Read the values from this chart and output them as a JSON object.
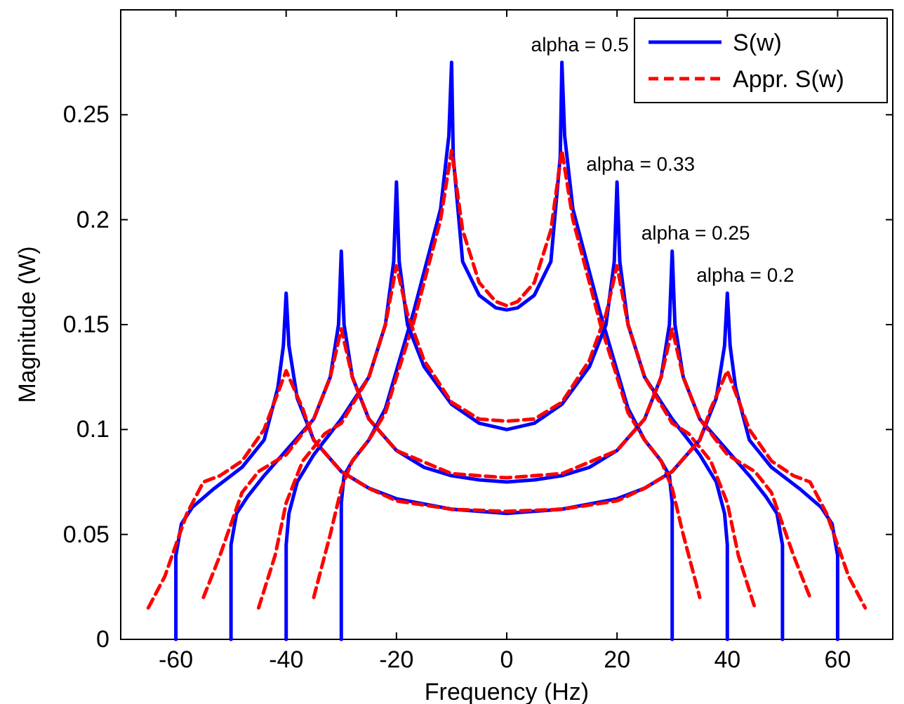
{
  "chart_data": {
    "type": "line",
    "xlabel": "Frequency (Hz)",
    "ylabel": "Magnitude (W)",
    "xlim": [
      -70,
      70
    ],
    "ylim": [
      0,
      0.3
    ],
    "xticks": [
      -60,
      -40,
      -20,
      0,
      20,
      40,
      60
    ],
    "yticks": [
      0,
      0.05,
      0.1,
      0.15,
      0.2,
      0.25
    ],
    "grid": false,
    "legend": "top right",
    "annotations": [
      {
        "text": "alpha = 0.5",
        "x": 10,
        "y": 0.275
      },
      {
        "text": "alpha = 0.33",
        "x": 20,
        "y": 0.218
      },
      {
        "text": "alpha = 0.25",
        "x": 30,
        "y": 0.185
      },
      {
        "text": "alpha = 0.2",
        "x": 40,
        "y": 0.165
      }
    ],
    "series": [
      {
        "name": "S(w)",
        "color": "#0000ff",
        "line_style": "solid",
        "x": [
          -30,
          -30,
          -29.5,
          -28,
          -25,
          -22,
          -20,
          -17,
          -15,
          -12,
          -10.5,
          -10,
          -9.7,
          -8,
          -5,
          -2,
          0,
          2,
          5,
          8,
          9.7,
          10,
          10.5,
          12,
          15,
          17,
          20,
          22,
          25,
          28,
          29.5,
          30,
          30
        ],
        "values": [
          0,
          0.065,
          0.078,
          0.085,
          0.095,
          0.11,
          0.128,
          0.155,
          0.175,
          0.205,
          0.24,
          0.275,
          0.23,
          0.18,
          0.164,
          0.158,
          0.157,
          0.158,
          0.164,
          0.18,
          0.23,
          0.275,
          0.24,
          0.205,
          0.175,
          0.155,
          0.128,
          0.11,
          0.095,
          0.085,
          0.078,
          0.065,
          0
        ]
      },
      {
        "name": "Appr. S(w)",
        "color": "#ff0000",
        "line_style": "dashed",
        "x": [
          -35,
          -32,
          -30,
          -28,
          -25,
          -22,
          -20,
          -17,
          -15,
          -12,
          -10,
          -8,
          -5,
          -2,
          0,
          2,
          5,
          8,
          10,
          12,
          15,
          17,
          20,
          22,
          25,
          28,
          30,
          32,
          35
        ],
        "values": [
          0.02,
          0.05,
          0.072,
          0.085,
          0.095,
          0.108,
          0.125,
          0.15,
          0.17,
          0.2,
          0.233,
          0.195,
          0.17,
          0.161,
          0.159,
          0.161,
          0.17,
          0.195,
          0.233,
          0.2,
          0.17,
          0.15,
          0.125,
          0.108,
          0.095,
          0.085,
          0.072,
          0.05,
          0.02
        ]
      },
      {
        "color": "#0000ff",
        "line_style": "solid",
        "x": [
          -40,
          -40,
          -39.5,
          -38,
          -35,
          -30,
          -25,
          -22,
          -20.5,
          -20,
          -19.5,
          -18,
          -15,
          -10,
          -5,
          0,
          5,
          10,
          15,
          18,
          19.5,
          20,
          20.5,
          22,
          25,
          30,
          35,
          38,
          39.5,
          40,
          40
        ],
        "values": [
          0,
          0.045,
          0.06,
          0.075,
          0.088,
          0.105,
          0.125,
          0.15,
          0.18,
          0.218,
          0.18,
          0.15,
          0.13,
          0.112,
          0.103,
          0.1,
          0.103,
          0.112,
          0.13,
          0.15,
          0.18,
          0.218,
          0.18,
          0.15,
          0.125,
          0.105,
          0.088,
          0.075,
          0.06,
          0.045,
          0
        ]
      },
      {
        "color": "#ff0000",
        "line_style": "dashed",
        "x": [
          -45,
          -42,
          -40,
          -37,
          -33,
          -30,
          -25,
          -22,
          -20,
          -18,
          -15,
          -10,
          -5,
          0,
          5,
          10,
          15,
          18,
          20,
          22,
          25,
          30,
          33,
          37,
          40,
          42,
          45
        ],
        "values": [
          0.015,
          0.04,
          0.065,
          0.085,
          0.098,
          0.103,
          0.125,
          0.15,
          0.178,
          0.155,
          0.133,
          0.113,
          0.105,
          0.104,
          0.105,
          0.113,
          0.133,
          0.155,
          0.178,
          0.15,
          0.125,
          0.103,
          0.098,
          0.085,
          0.065,
          0.04,
          0.015
        ]
      },
      {
        "color": "#0000ff",
        "line_style": "solid",
        "x": [
          -50,
          -50,
          -49,
          -47,
          -44,
          -40,
          -35,
          -32,
          -30.5,
          -30,
          -29.5,
          -28,
          -25,
          -20,
          -15,
          -10,
          -5,
          0,
          5,
          10,
          15,
          20,
          25,
          28,
          29.5,
          30,
          30.5,
          32,
          35,
          40,
          44,
          47,
          49,
          50,
          50
        ],
        "values": [
          0,
          0.045,
          0.06,
          0.068,
          0.078,
          0.09,
          0.105,
          0.125,
          0.15,
          0.185,
          0.15,
          0.125,
          0.105,
          0.09,
          0.082,
          0.078,
          0.076,
          0.075,
          0.076,
          0.078,
          0.082,
          0.09,
          0.105,
          0.125,
          0.15,
          0.185,
          0.15,
          0.125,
          0.105,
          0.09,
          0.078,
          0.068,
          0.06,
          0.045,
          0
        ]
      },
      {
        "color": "#ff0000",
        "line_style": "dashed",
        "x": [
          -55,
          -52,
          -50,
          -48,
          -45,
          -40,
          -35,
          -32,
          -30,
          -28,
          -25,
          -20,
          -10,
          0,
          10,
          20,
          25,
          28,
          30,
          32,
          35,
          40,
          45,
          48,
          50,
          52,
          55
        ],
        "values": [
          0.02,
          0.04,
          0.055,
          0.07,
          0.08,
          0.088,
          0.105,
          0.125,
          0.148,
          0.125,
          0.105,
          0.09,
          0.079,
          0.077,
          0.079,
          0.09,
          0.105,
          0.125,
          0.148,
          0.125,
          0.105,
          0.088,
          0.08,
          0.07,
          0.055,
          0.04,
          0.02
        ]
      },
      {
        "color": "#0000ff",
        "line_style": "solid",
        "x": [
          -60,
          -60,
          -59,
          -57,
          -53,
          -48,
          -44,
          -41.5,
          -40.5,
          -40,
          -39.5,
          -38,
          -35,
          -30,
          -25,
          -20,
          -10,
          0,
          10,
          20,
          25,
          30,
          35,
          38,
          39.5,
          40,
          40.5,
          41.5,
          44,
          48,
          53,
          57,
          59,
          60,
          60
        ],
        "values": [
          0,
          0.04,
          0.055,
          0.063,
          0.072,
          0.082,
          0.095,
          0.12,
          0.14,
          0.165,
          0.14,
          0.115,
          0.095,
          0.08,
          0.072,
          0.067,
          0.062,
          0.06,
          0.062,
          0.067,
          0.072,
          0.08,
          0.095,
          0.115,
          0.14,
          0.165,
          0.14,
          0.12,
          0.095,
          0.082,
          0.072,
          0.063,
          0.055,
          0.04,
          0
        ]
      },
      {
        "color": "#ff0000",
        "line_style": "dashed",
        "x": [
          -65,
          -62,
          -60,
          -58,
          -55,
          -52,
          -48,
          -44,
          -40,
          -37,
          -35,
          -30,
          -25,
          -20,
          -10,
          0,
          10,
          20,
          25,
          30,
          35,
          37,
          40,
          44,
          48,
          52,
          55,
          58,
          60,
          62,
          65
        ],
        "values": [
          0.015,
          0.03,
          0.045,
          0.06,
          0.075,
          0.078,
          0.085,
          0.1,
          0.128,
          0.11,
          0.095,
          0.08,
          0.072,
          0.066,
          0.062,
          0.061,
          0.062,
          0.066,
          0.072,
          0.08,
          0.095,
          0.11,
          0.128,
          0.1,
          0.085,
          0.078,
          0.075,
          0.06,
          0.045,
          0.03,
          0.015
        ]
      }
    ]
  }
}
